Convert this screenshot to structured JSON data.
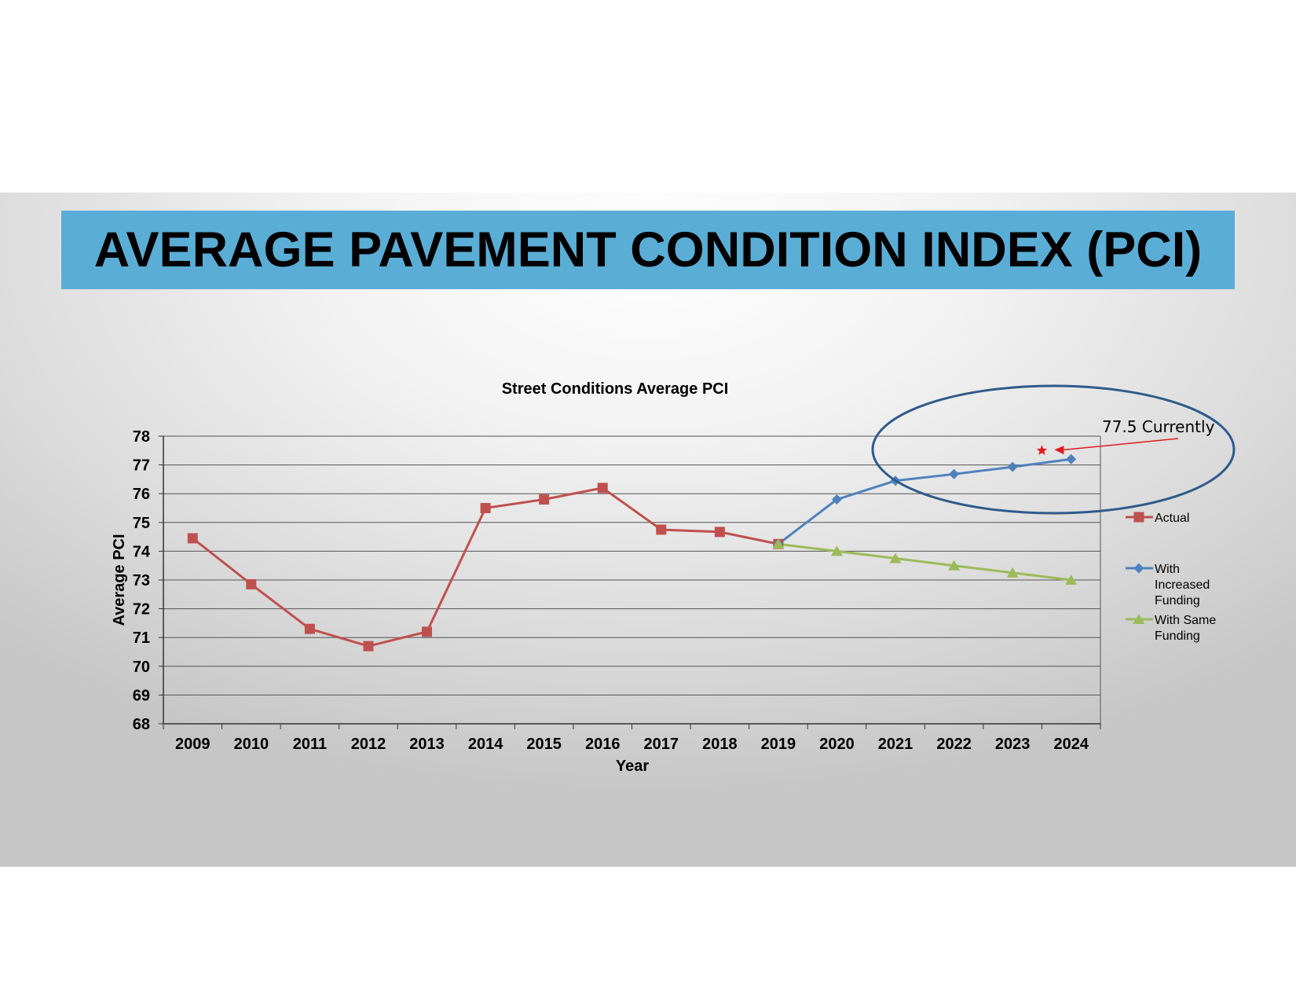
{
  "slide": {
    "title": "AVERAGE PAVEMENT CONDITION INDEX (PCI)",
    "banner_color": "#5aaed6"
  },
  "chart_data": {
    "type": "line",
    "title": "Street Conditions Average PCI",
    "xlabel": "Year",
    "ylabel": "Average PCI",
    "ylim": [
      68,
      78
    ],
    "yticks": [
      "68",
      "69",
      "70",
      "71",
      "72",
      "73",
      "74",
      "75",
      "76",
      "77",
      "78"
    ],
    "categories": [
      "2009",
      "2010",
      "2011",
      "2012",
      "2013",
      "2014",
      "2015",
      "2016",
      "2017",
      "2018",
      "2019",
      "2020",
      "2021",
      "2022",
      "2023",
      "2024"
    ],
    "grid": true,
    "legend_position": "right",
    "series": [
      {
        "name": "Actual",
        "color": "#c0504d",
        "marker": "square",
        "values": [
          74.45,
          72.85,
          71.3,
          70.7,
          71.2,
          75.5,
          75.8,
          76.2,
          74.75,
          74.67,
          74.25,
          null,
          null,
          null,
          null,
          null
        ]
      },
      {
        "name": "With Increased Funding",
        "legend_lines": [
          "With",
          "Increased",
          "Funding"
        ],
        "color": "#4f81bd",
        "marker": "diamond",
        "values": [
          null,
          null,
          null,
          null,
          null,
          null,
          null,
          null,
          null,
          null,
          74.25,
          75.8,
          76.45,
          76.68,
          76.93,
          77.2
        ]
      },
      {
        "name": "With Same Funding",
        "legend_lines": [
          "With Same",
          "Funding"
        ],
        "color": "#9bbb59",
        "marker": "triangle",
        "values": [
          null,
          null,
          null,
          null,
          null,
          null,
          null,
          null,
          null,
          null,
          74.25,
          74.0,
          73.75,
          73.5,
          73.25,
          73.0
        ]
      }
    ],
    "annotation": {
      "text": "77.5 Currently",
      "marker_x_between": [
        "2023",
        "2024"
      ],
      "marker_y": 77.5,
      "marker_color": "#e31a1c",
      "ellipse_color": "#2e5a8a"
    }
  }
}
